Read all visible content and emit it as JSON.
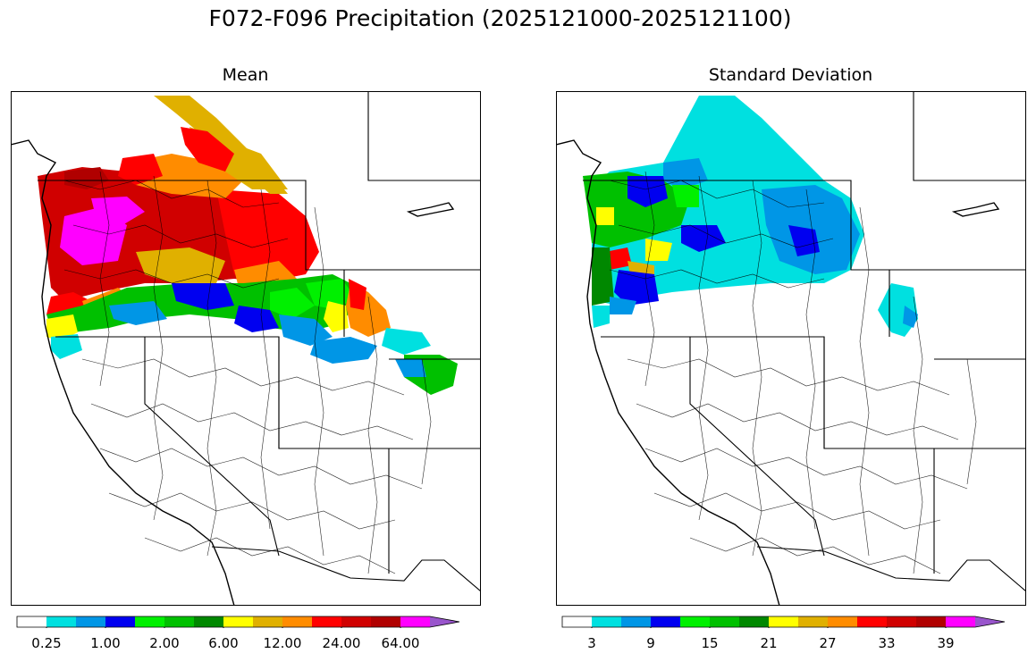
{
  "figure": {
    "title": "F072-F096 Precipitation (2025121000-2025121100)"
  },
  "panels": [
    {
      "id": "mean",
      "title": "Mean",
      "colorbar": {
        "colors": [
          "#ffffff",
          "#00e0e0",
          "#0096e6",
          "#0000f0",
          "#00f000",
          "#00c000",
          "#008800",
          "#ffff00",
          "#e0b000",
          "#ff8c00",
          "#ff0000",
          "#d00000",
          "#b00000",
          "#ff00ff",
          "#9955cc"
        ],
        "tick_labels": [
          "0.25",
          "1.00",
          "2.00",
          "6.00",
          "12.00",
          "24.00",
          "64.00"
        ],
        "extend": "max"
      }
    },
    {
      "id": "stddev",
      "title": "Standard Deviation",
      "colorbar": {
        "colors": [
          "#ffffff",
          "#00e0e0",
          "#0096e6",
          "#0000f0",
          "#00f000",
          "#00c000",
          "#008800",
          "#ffff00",
          "#e0b000",
          "#ff8c00",
          "#ff0000",
          "#d00000",
          "#b00000",
          "#ff00ff",
          "#9955cc"
        ],
        "tick_labels": [
          "3",
          "9",
          "15",
          "21",
          "27",
          "33",
          "39"
        ],
        "extend": "max"
      }
    }
  ]
}
